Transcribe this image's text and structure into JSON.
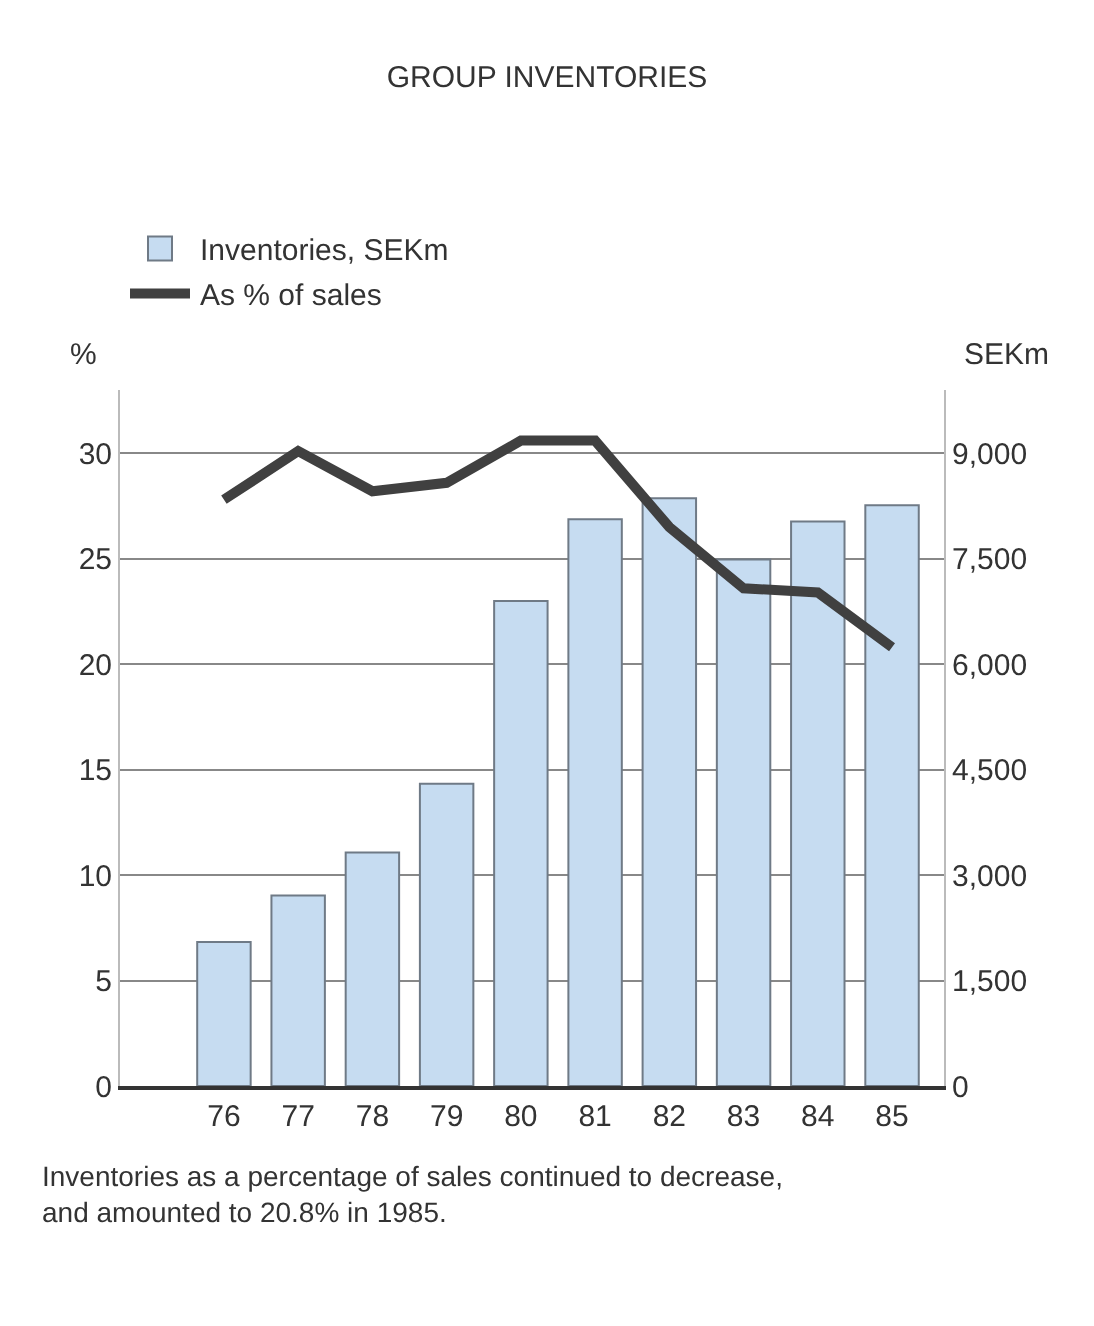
{
  "chart_data": {
    "type": "bar",
    "title": "GROUP INVENTORIES",
    "categories": [
      "76",
      "77",
      "78",
      "79",
      "80",
      "81",
      "82",
      "83",
      "84",
      "85"
    ],
    "series": [
      {
        "name": "Inventories, SEKm",
        "axis": "y2",
        "color": "#c6dcf1",
        "values": [
          2050,
          2710,
          3320,
          4300,
          6900,
          8060,
          8360,
          7490,
          8030,
          8260
        ]
      },
      {
        "name": "As % of sales",
        "type": "line",
        "color": "#404040",
        "values": [
          27.8,
          30.1,
          28.2,
          28.6,
          30.6,
          30.6,
          26.5,
          23.6,
          23.4,
          20.8
        ]
      }
    ],
    "ylabel": "%",
    "y2label": "SEKm",
    "ylim": [
      0,
      33
    ],
    "yticks": [
      0,
      5,
      10,
      15,
      20,
      25,
      30
    ],
    "y2lim": [
      0,
      9900
    ],
    "y2ticks": [
      0,
      {
        "value": 1500,
        "label": "1,500"
      },
      {
        "value": 3000,
        "label": "3,000"
      },
      {
        "value": 4500,
        "label": "4,500"
      },
      {
        "value": 6000,
        "label": "6,000"
      },
      {
        "value": 7500,
        "label": "7,500"
      },
      {
        "value": 9000,
        "label": "9,000"
      }
    ],
    "grid": "y",
    "legend": "top left",
    "marker": "none",
    "line_style": "solid",
    "annotations": [
      "Inventories as a percentage of sales continued to decrease,\nand amounted to 20.8% in 1985."
    ]
  }
}
